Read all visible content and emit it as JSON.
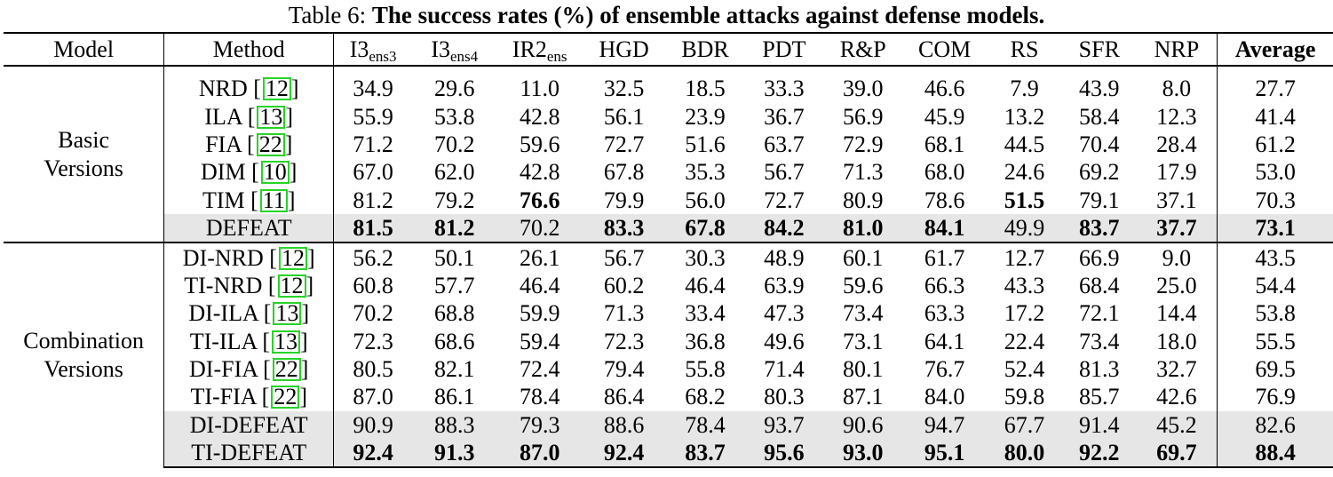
{
  "caption": {
    "prefix": "Table 6: ",
    "title": "The success rates (%) of ensemble attacks against defense models."
  },
  "header": {
    "model": "Model",
    "method": "Method",
    "columns": [
      {
        "base": "I3",
        "sub": "ens3"
      },
      {
        "base": "I3",
        "sub": "ens4"
      },
      {
        "base": "IR2",
        "sub": "ens"
      },
      {
        "base": "HGD",
        "sub": ""
      },
      {
        "base": "BDR",
        "sub": ""
      },
      {
        "base": "PDT",
        "sub": ""
      },
      {
        "base": "R&P",
        "sub": ""
      },
      {
        "base": "COM",
        "sub": ""
      },
      {
        "base": "RS",
        "sub": ""
      },
      {
        "base": "SFR",
        "sub": ""
      },
      {
        "base": "NRP",
        "sub": ""
      }
    ],
    "average": "Average"
  },
  "groups": [
    {
      "label_line1": "Basic",
      "label_line2": "Versions",
      "rows": [
        {
          "method": "NRD",
          "cite": "12",
          "shaded": false,
          "values": [
            "34.9",
            "29.6",
            "11.0",
            "32.5",
            "18.5",
            "33.3",
            "39.0",
            "46.6",
            "7.9",
            "43.9",
            "8.0"
          ],
          "bold": [],
          "average": "27.7",
          "avg_bold": false
        },
        {
          "method": "ILA",
          "cite": "13",
          "shaded": false,
          "values": [
            "55.9",
            "53.8",
            "42.8",
            "56.1",
            "23.9",
            "36.7",
            "56.9",
            "45.9",
            "13.2",
            "58.4",
            "12.3"
          ],
          "bold": [],
          "average": "41.4",
          "avg_bold": false
        },
        {
          "method": "FIA",
          "cite": "22",
          "shaded": false,
          "values": [
            "71.2",
            "70.2",
            "59.6",
            "72.7",
            "51.6",
            "63.7",
            "72.9",
            "68.1",
            "44.5",
            "70.4",
            "28.4"
          ],
          "bold": [],
          "average": "61.2",
          "avg_bold": false
        },
        {
          "method": "DIM",
          "cite": "10",
          "shaded": false,
          "values": [
            "67.0",
            "62.0",
            "42.8",
            "67.8",
            "35.3",
            "56.7",
            "71.3",
            "68.0",
            "24.6",
            "69.2",
            "17.9"
          ],
          "bold": [],
          "average": "53.0",
          "avg_bold": false
        },
        {
          "method": "TIM",
          "cite": "11",
          "shaded": false,
          "values": [
            "81.2",
            "79.2",
            "76.6",
            "79.9",
            "56.0",
            "72.7",
            "80.9",
            "78.6",
            "51.5",
            "79.1",
            "37.1"
          ],
          "bold": [
            2,
            8
          ],
          "average": "70.3",
          "avg_bold": false
        },
        {
          "method": "DEFEAT",
          "cite": "",
          "shaded": true,
          "values": [
            "81.5",
            "81.2",
            "70.2",
            "83.3",
            "67.8",
            "84.2",
            "81.0",
            "84.1",
            "49.9",
            "83.7",
            "37.7"
          ],
          "bold": [
            0,
            1,
            3,
            4,
            5,
            6,
            7,
            9,
            10
          ],
          "average": "73.1",
          "avg_bold": true
        }
      ]
    },
    {
      "label_line1": "Combination",
      "label_line2": "Versions",
      "rows": [
        {
          "method": "DI-NRD",
          "cite": "12",
          "shaded": false,
          "values": [
            "56.2",
            "50.1",
            "26.1",
            "56.7",
            "30.3",
            "48.9",
            "60.1",
            "61.7",
            "12.7",
            "66.9",
            "9.0"
          ],
          "bold": [],
          "average": "43.5",
          "avg_bold": false
        },
        {
          "method": "TI-NRD",
          "cite": "12",
          "shaded": false,
          "values": [
            "60.8",
            "57.7",
            "46.4",
            "60.2",
            "46.4",
            "63.9",
            "59.6",
            "66.3",
            "43.3",
            "68.4",
            "25.0"
          ],
          "bold": [],
          "average": "54.4",
          "avg_bold": false
        },
        {
          "method": "DI-ILA",
          "cite": "13",
          "shaded": false,
          "values": [
            "70.2",
            "68.8",
            "59.9",
            "71.3",
            "33.4",
            "47.3",
            "73.4",
            "63.3",
            "17.2",
            "72.1",
            "14.4"
          ],
          "bold": [],
          "average": "53.8",
          "avg_bold": false
        },
        {
          "method": "TI-ILA",
          "cite": "13",
          "shaded": false,
          "values": [
            "72.3",
            "68.6",
            "59.4",
            "72.3",
            "36.8",
            "49.6",
            "73.1",
            "64.1",
            "22.4",
            "73.4",
            "18.0"
          ],
          "bold": [],
          "average": "55.5",
          "avg_bold": false
        },
        {
          "method": "DI-FIA",
          "cite": "22",
          "shaded": false,
          "values": [
            "80.5",
            "82.1",
            "72.4",
            "79.4",
            "55.8",
            "71.4",
            "80.1",
            "76.7",
            "52.4",
            "81.3",
            "32.7"
          ],
          "bold": [],
          "average": "69.5",
          "avg_bold": false
        },
        {
          "method": "TI-FIA",
          "cite": "22",
          "shaded": false,
          "values": [
            "87.0",
            "86.1",
            "78.4",
            "86.4",
            "68.2",
            "80.3",
            "87.1",
            "84.0",
            "59.8",
            "85.7",
            "42.6"
          ],
          "bold": [],
          "average": "76.9",
          "avg_bold": false
        },
        {
          "method": "DI-DEFEAT",
          "cite": "",
          "shaded": true,
          "values": [
            "90.9",
            "88.3",
            "79.3",
            "88.6",
            "78.4",
            "93.7",
            "90.6",
            "94.7",
            "67.7",
            "91.4",
            "45.2"
          ],
          "bold": [],
          "average": "82.6",
          "avg_bold": false
        },
        {
          "method": "TI-DEFEAT",
          "cite": "",
          "shaded": true,
          "values": [
            "92.4",
            "91.3",
            "87.0",
            "92.4",
            "83.7",
            "95.6",
            "93.0",
            "95.1",
            "80.0",
            "92.2",
            "69.7"
          ],
          "bold": [
            0,
            1,
            2,
            3,
            4,
            5,
            6,
            7,
            8,
            9,
            10
          ],
          "average": "88.4",
          "avg_bold": true
        }
      ]
    }
  ]
}
